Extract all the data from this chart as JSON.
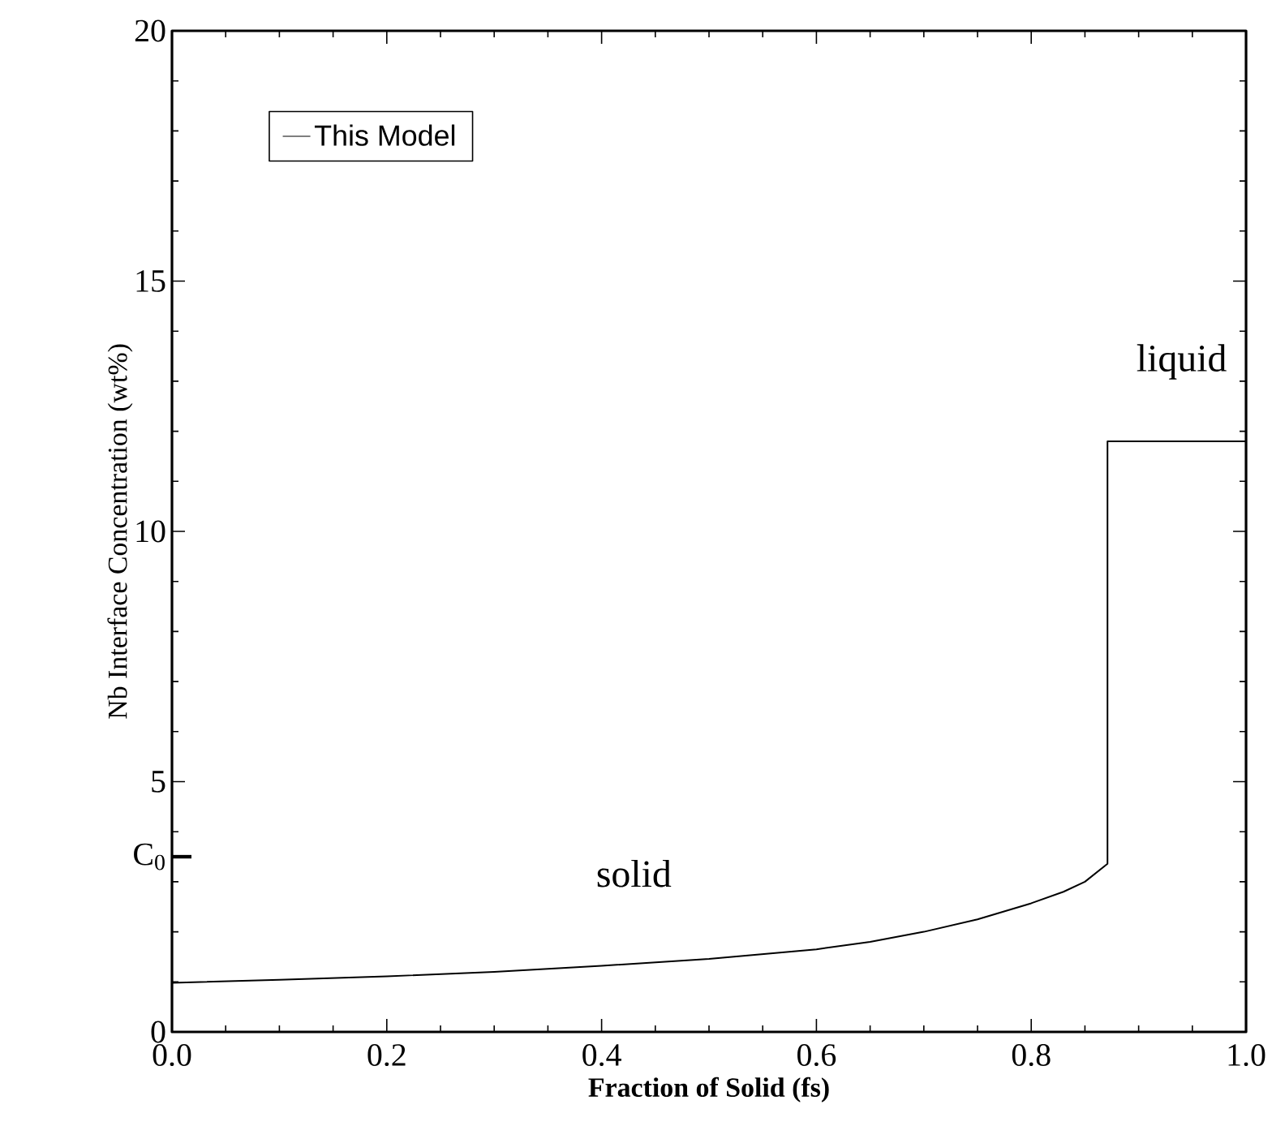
{
  "chart_data": {
    "type": "line",
    "xlabel": "Fraction of Solid (fs)",
    "ylabel": "Nb Interface Concentration (wt%)",
    "x": [
      0,
      0.1,
      0.2,
      0.3,
      0.4,
      0.5,
      0.6,
      0.65,
      0.7,
      0.75,
      0.8,
      0.83,
      0.85,
      0.871,
      0.871,
      1.0
    ],
    "series": [
      {
        "name": "This Model",
        "color": "#000000",
        "values": [
          0.98,
          1.04,
          1.11,
          1.2,
          1.32,
          1.46,
          1.65,
          1.8,
          2.0,
          2.25,
          2.57,
          2.8,
          3.0,
          3.36,
          11.8,
          11.8
        ]
      }
    ],
    "xlim": [
      0,
      1
    ],
    "xticks": [
      {
        "value": 0,
        "label": "0.0"
      },
      0.2,
      0.4,
      0.6,
      0.8,
      {
        "value": 1,
        "label": "1.0"
      }
    ],
    "ylim": [
      0,
      20
    ],
    "yticks": [
      0,
      5,
      10,
      15,
      20
    ],
    "ref_lines": [
      {
        "axis": "y",
        "value": 3.5,
        "label": "C$_{0}$"
      }
    ],
    "annotations": [
      "solid",
      "liquid"
    ],
    "legend": "top left",
    "grid": false,
    "marker": "none",
    "line_style": "solid"
  }
}
